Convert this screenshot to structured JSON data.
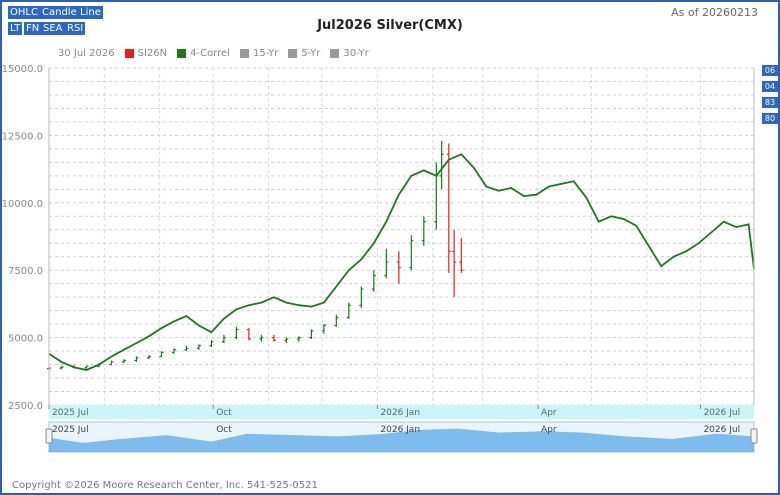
{
  "buttons": [
    "OHLC",
    "Candle",
    "Line",
    "LT",
    "FN",
    "SEA",
    "RSI"
  ],
  "header": {
    "as_of": "As of 20260213"
  },
  "legend": {
    "date": "30 Jul 2026",
    "items": [
      "SI26N",
      "4-Correl",
      "15-Yr",
      "5-Yr",
      "30-Yr"
    ]
  },
  "right_badges": [
    "06",
    "04",
    "83",
    "80"
  ],
  "footer": {
    "copyright": "Copyright ©2026 Moore Research Center, Inc. 541-525-0521"
  },
  "colors": {
    "seasonal": "#1a7a1a",
    "up": "#1a7a1a",
    "down": "#e02020",
    "navigator": "#62aee8",
    "navigator_band": "#c9f4f8",
    "accent": "#2b67c6"
  },
  "chart_data": {
    "type": "line",
    "title": "Jul2026 Silver(CMX)",
    "ylim": [
      2500,
      15000
    ],
    "yticks": [
      "15000.0",
      "12500.0",
      "10000.0",
      "7500.0",
      "5000.0",
      "2500.0"
    ],
    "xlim": [
      "2025-07-01",
      "2026-07-31"
    ],
    "xticks": [
      {
        "date": "2025-07-01",
        "label": "2025 Jul"
      },
      {
        "date": "2025-10-01",
        "label": "Oct"
      },
      {
        "date": "2026-01-01",
        "label": "2026 Jan"
      },
      {
        "date": "2026-04-01",
        "label": "Apr"
      },
      {
        "date": "2026-07-01",
        "label": "2026 Jul"
      }
    ],
    "series": [
      {
        "name": "4-Correl",
        "type": "line",
        "points": [
          [
            "2025-07-01",
            4400
          ],
          [
            "2025-07-08",
            4100
          ],
          [
            "2025-07-15",
            3900
          ],
          [
            "2025-07-22",
            3800
          ],
          [
            "2025-07-29",
            4000
          ],
          [
            "2025-08-05",
            4300
          ],
          [
            "2025-08-12",
            4550
          ],
          [
            "2025-08-19",
            4800
          ],
          [
            "2025-08-26",
            5050
          ],
          [
            "2025-09-02",
            5350
          ],
          [
            "2025-09-09",
            5600
          ],
          [
            "2025-09-16",
            5800
          ],
          [
            "2025-09-23",
            5450
          ],
          [
            "2025-09-30",
            5200
          ],
          [
            "2025-10-07",
            5700
          ],
          [
            "2025-10-14",
            6050
          ],
          [
            "2025-10-21",
            6200
          ],
          [
            "2025-10-28",
            6300
          ],
          [
            "2025-11-04",
            6500
          ],
          [
            "2025-11-11",
            6300
          ],
          [
            "2025-11-18",
            6200
          ],
          [
            "2025-11-25",
            6150
          ],
          [
            "2025-12-02",
            6300
          ],
          [
            "2025-12-09",
            6900
          ],
          [
            "2025-12-16",
            7500
          ],
          [
            "2025-12-23",
            7900
          ],
          [
            "2025-12-30",
            8500
          ],
          [
            "2026-01-06",
            9300
          ],
          [
            "2026-01-13",
            10300
          ],
          [
            "2026-01-20",
            11000
          ],
          [
            "2026-01-27",
            11200
          ],
          [
            "2026-02-03",
            11000
          ],
          [
            "2026-02-10",
            11600
          ],
          [
            "2026-02-17",
            11800
          ],
          [
            "2026-02-24",
            11300
          ],
          [
            "2026-03-03",
            10600
          ],
          [
            "2026-03-10",
            10450
          ],
          [
            "2026-03-17",
            10550
          ],
          [
            "2026-03-24",
            10250
          ],
          [
            "2026-03-31",
            10300
          ],
          [
            "2026-04-07",
            10600
          ],
          [
            "2026-04-14",
            10700
          ],
          [
            "2026-04-21",
            10800
          ],
          [
            "2026-04-28",
            10200
          ],
          [
            "2026-05-05",
            9300
          ],
          [
            "2026-05-12",
            9500
          ],
          [
            "2026-05-19",
            9400
          ],
          [
            "2026-05-26",
            9150
          ],
          [
            "2026-06-02",
            8400
          ],
          [
            "2026-06-09",
            7650
          ],
          [
            "2026-06-16",
            8000
          ],
          [
            "2026-06-23",
            8200
          ],
          [
            "2026-06-30",
            8500
          ],
          [
            "2026-07-07",
            8900
          ],
          [
            "2026-07-14",
            9300
          ],
          [
            "2026-07-21",
            9100
          ],
          [
            "2026-07-28",
            9200
          ],
          [
            "2026-07-31",
            7550
          ]
        ]
      },
      {
        "name": "SI26N",
        "type": "ohlc",
        "points": [
          [
            "2025-07-01",
            3850,
            3900,
            3800,
            3870
          ],
          [
            "2025-07-08",
            3870,
            3950,
            3820,
            3900
          ],
          [
            "2025-07-15",
            3900,
            3980,
            3860,
            3880
          ],
          [
            "2025-07-22",
            3880,
            3950,
            3850,
            3940
          ],
          [
            "2025-07-29",
            3940,
            4050,
            3900,
            4000
          ],
          [
            "2025-08-05",
            4000,
            4150,
            3980,
            4100
          ],
          [
            "2025-08-12",
            4100,
            4200,
            4050,
            4150
          ],
          [
            "2025-08-19",
            4150,
            4300,
            4100,
            4250
          ],
          [
            "2025-08-26",
            4250,
            4350,
            4200,
            4300
          ],
          [
            "2025-09-02",
            4300,
            4500,
            4280,
            4450
          ],
          [
            "2025-09-09",
            4450,
            4600,
            4400,
            4550
          ],
          [
            "2025-09-16",
            4550,
            4700,
            4500,
            4600
          ],
          [
            "2025-09-23",
            4600,
            4750,
            4550,
            4700
          ],
          [
            "2025-09-30",
            4700,
            4900,
            4650,
            4850
          ],
          [
            "2025-10-07",
            4850,
            5100,
            4800,
            5000
          ],
          [
            "2025-10-14",
            5000,
            5400,
            4950,
            5300
          ],
          [
            "2025-10-21",
            5300,
            5350,
            4900,
            4950
          ],
          [
            "2025-10-28",
            4950,
            5100,
            4850,
            5000
          ],
          [
            "2025-11-04",
            5000,
            5100,
            4850,
            4900
          ],
          [
            "2025-11-11",
            4900,
            5000,
            4800,
            4950
          ],
          [
            "2025-11-18",
            4950,
            5050,
            4850,
            5000
          ],
          [
            "2025-11-25",
            5000,
            5300,
            4950,
            5250
          ],
          [
            "2025-12-02",
            5250,
            5500,
            5150,
            5450
          ],
          [
            "2025-12-09",
            5450,
            5850,
            5400,
            5750
          ],
          [
            "2025-12-16",
            5750,
            6300,
            5700,
            6200
          ],
          [
            "2025-12-23",
            6200,
            6900,
            6100,
            6800
          ],
          [
            "2025-12-30",
            6800,
            7500,
            6700,
            7300
          ],
          [
            "2026-01-06",
            7300,
            8300,
            7200,
            7800
          ],
          [
            "2026-01-13",
            7800,
            8200,
            7000,
            7600
          ],
          [
            "2026-01-20",
            7600,
            8800,
            7500,
            8600
          ],
          [
            "2026-01-27",
            8600,
            9500,
            8400,
            9300
          ],
          [
            "2026-02-03",
            9300,
            11500,
            9000,
            11000
          ],
          [
            "2026-02-06",
            11000,
            12300,
            10500,
            11800
          ],
          [
            "2026-02-10",
            11800,
            12200,
            7400,
            8200
          ],
          [
            "2026-02-13",
            8200,
            9000,
            6500,
            7800
          ],
          [
            "2026-02-17",
            7800,
            8700,
            7400,
            7500
          ]
        ]
      }
    ],
    "navigator": {
      "labels": [
        "2025 Jul",
        "Oct",
        "2026 Jan",
        "Apr",
        "2026 Jul"
      ],
      "area": [
        [
          "2025-07-01",
          0.55
        ],
        [
          "2025-07-20",
          0.35
        ],
        [
          "2025-08-10",
          0.5
        ],
        [
          "2025-09-05",
          0.65
        ],
        [
          "2025-09-30",
          0.4
        ],
        [
          "2025-10-20",
          0.7
        ],
        [
          "2025-11-15",
          0.65
        ],
        [
          "2025-12-10",
          0.6
        ],
        [
          "2026-01-05",
          0.7
        ],
        [
          "2026-01-25",
          0.85
        ],
        [
          "2026-02-15",
          0.9
        ],
        [
          "2026-03-10",
          0.75
        ],
        [
          "2026-04-05",
          0.8
        ],
        [
          "2026-04-25",
          0.75
        ],
        [
          "2026-05-20",
          0.6
        ],
        [
          "2026-06-15",
          0.5
        ],
        [
          "2026-07-10",
          0.7
        ],
        [
          "2026-07-31",
          0.6
        ]
      ]
    }
  }
}
